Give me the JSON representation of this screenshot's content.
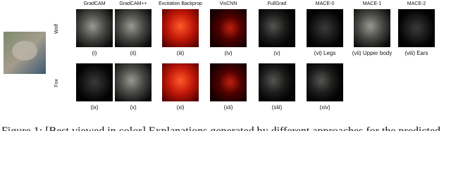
{
  "columns": [
    "GradCAM",
    "GradCAM++",
    "Excitation Backprop",
    "VisCNN",
    "FullGrad",
    "MACE-0",
    "MACE-1",
    "MACE-2"
  ],
  "rows": [
    {
      "label": "Wolf",
      "captions": [
        "(i)",
        "(ii)",
        "(iii)",
        "(iv)",
        "(v)",
        "(vi) Legs",
        "(vii) Upper body",
        "(viii) Ears"
      ]
    },
    {
      "label": "Fox",
      "captions": [
        "(ix)",
        "(x)",
        "(xi)",
        "(xii)",
        "(xiii)",
        "(xiv)"
      ]
    }
  ],
  "caption": "Figure 1: [Best viewed in color] Explanations generated by different approaches for the predicted"
}
